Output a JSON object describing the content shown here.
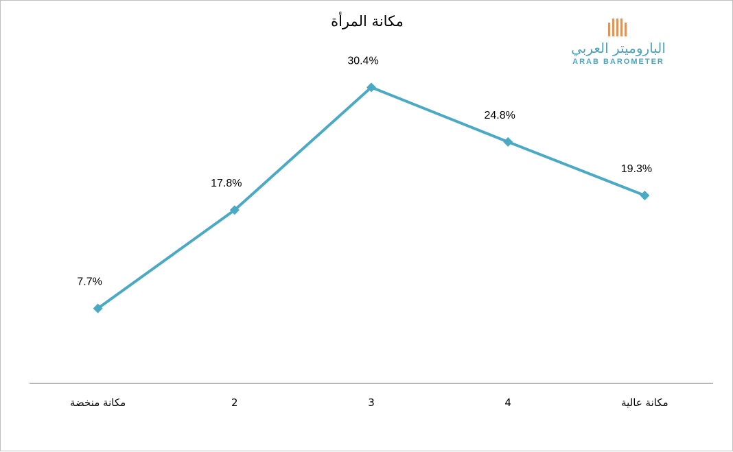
{
  "chart_data": {
    "type": "line",
    "title": "مكانة المرأة",
    "categories": [
      "مكانة منخضة",
      "2",
      "3",
      "4",
      "مكانة عالية"
    ],
    "values": [
      7.7,
      17.8,
      30.4,
      24.8,
      19.3
    ],
    "data_labels": [
      "7.7%",
      "17.8%",
      "30.4%",
      "24.8%",
      "19.3%"
    ],
    "xlabel": "",
    "ylabel": "",
    "ylim": [
      0,
      35
    ],
    "grid": false,
    "legend": "none",
    "series_color": "#4aa9c4",
    "marker": "diamond"
  },
  "logo": {
    "arabic_name": "الباروميتر العربي",
    "english_name": "ARAB BAROMETER",
    "bar_color": "#e0935a",
    "text_color": "#4aa3b8"
  }
}
